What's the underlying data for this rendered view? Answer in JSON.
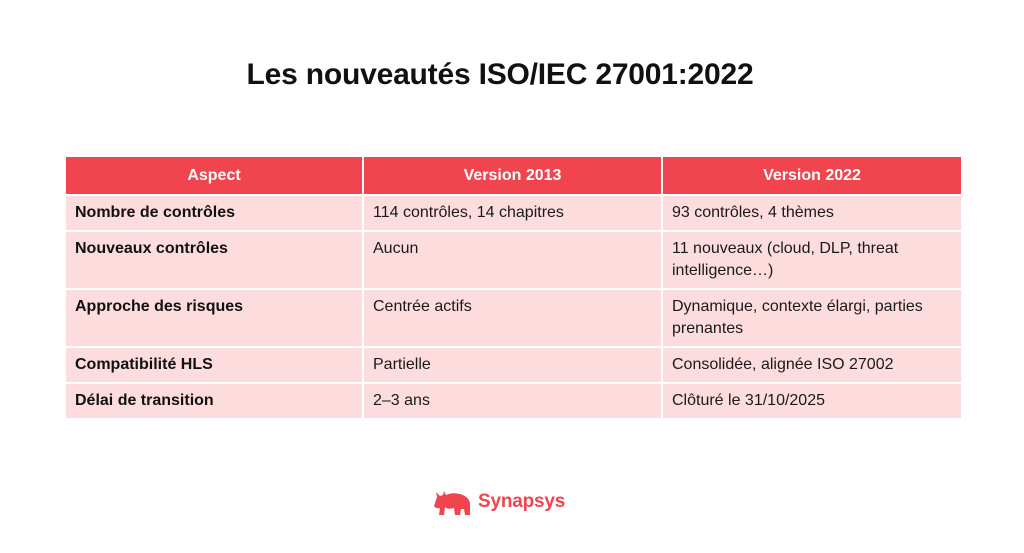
{
  "title": "Les nouveautés ISO/IEC 27001:2022",
  "table": {
    "headers": [
      "Aspect",
      "Version 2013",
      "Version 2022"
    ],
    "rows": [
      [
        "Nombre de contrôles",
        "114 contrôles, 14 chapitres",
        "93 contrôles, 4 thèmes"
      ],
      [
        "Nouveaux contrôles",
        "Aucun",
        "11 nouveaux (cloud, DLP, threat intelligence…)"
      ],
      [
        "Approche des risques",
        "Centrée actifs",
        "Dynamique, contexte élargi, parties prenantes"
      ],
      [
        "Compatibilité HLS",
        "Partielle",
        "Consolidée, alignée ISO 27002"
      ],
      [
        "Délai de transition",
        "2–3 ans",
        "Clôturé le 31/10/2025"
      ]
    ]
  },
  "logo": {
    "name": "Synapsys",
    "icon": "rhino-icon",
    "color": "#f0444f"
  },
  "colors": {
    "header_bg": "#f0444f",
    "cell_bg": "#fddcdd"
  }
}
